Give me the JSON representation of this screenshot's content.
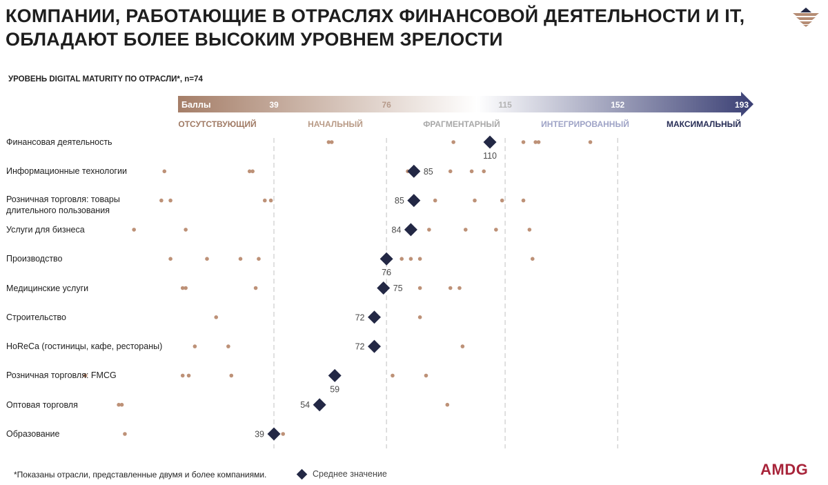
{
  "header": {
    "title_line1": "КОМПАНИИ, РАБОТАЮЩИЕ В ОТРАСЛЯХ ФИНАНСОВОЙ ДЕЯТЕЛЬНОСТИ И IT,",
    "title_line2": "ОБЛАДАЮТ БОЛЕЕ ВЫСОКИМ УРОВНЕМ ЗРЕЛОСТИ",
    "logo_icon": "triangle-stripes-logo-icon"
  },
  "footer": {
    "footnote": "*Показаны отрасли, представленные двумя и более компаниями.",
    "legend_label": "Среднее значение",
    "brand": "AMDG"
  },
  "colors": {
    "dot": "#bd9177",
    "mean": "#232845",
    "level_0": "#a07a64",
    "level_1": "#b89a86",
    "level_2": "#a8a8a8",
    "level_3": "#9ea3c6",
    "level_4": "#262c55",
    "gradient_start": "#a57e68",
    "gradient_mid": "#ffffff",
    "gradient_end": "#3a3f74",
    "brand": "#a8243a"
  },
  "chart_data": {
    "type": "scatter",
    "title": "УРОВЕНЬ DIGITAL MATURITY ПО ОТРАСЛИ*, n=74",
    "xlabel": "Баллы",
    "xlim": [
      0,
      193
    ],
    "thresholds": [
      39,
      76,
      115,
      152,
      193
    ],
    "levels": [
      "ОТСУТСТВУЮЩИЙ",
      "НАЧАЛЬНЫЙ",
      "ФРАГМЕНТАРНЫЙ",
      "ИНТЕГРИРОВАННЫЙ",
      "МАКСИМАЛЬНЫЙ"
    ],
    "grid": "dashed vertical lines at thresholds",
    "categories": [
      {
        "name": "Финансовая деятельность",
        "mean": 110,
        "mean_label": "110",
        "label_pos": "below",
        "points": [
          57,
          58,
          98,
          121,
          125,
          126,
          143
        ]
      },
      {
        "name": "Информационные технологии",
        "mean": 85,
        "mean_label": "85",
        "label_pos": "right",
        "points": [
          3,
          31,
          32,
          83,
          97,
          104,
          108
        ]
      },
      {
        "name": "Розничная торговля: товары длительного пользования",
        "mean": 85,
        "mean_label": "85",
        "label_pos": "left",
        "points": [
          2,
          5,
          36,
          38,
          92,
          105,
          114,
          121
        ]
      },
      {
        "name": "Услуги для бизнеса",
        "mean": 84,
        "mean_label": "84",
        "label_pos": "left",
        "points": [
          -7,
          10,
          90,
          102,
          112,
          123
        ]
      },
      {
        "name": "Производство",
        "mean": 76,
        "mean_label": "76",
        "label_pos": "below",
        "points": [
          5,
          17,
          28,
          34,
          81,
          84,
          87,
          124
        ]
      },
      {
        "name": "Медицинские услуги",
        "mean": 75,
        "mean_label": "75",
        "label_pos": "right",
        "points": [
          9,
          10,
          33,
          87,
          97,
          100
        ]
      },
      {
        "name": "Строительство",
        "mean": 72,
        "mean_label": "72",
        "label_pos": "left",
        "points": [
          20,
          87
        ]
      },
      {
        "name": "HoReCa (гостиницы, кафе, рестораны)",
        "mean": 72,
        "mean_label": "72",
        "label_pos": "left",
        "points": [
          13,
          24,
          101
        ]
      },
      {
        "name": "Розничная торговля: FMCG",
        "mean": 59,
        "mean_label": "59",
        "label_pos": "below",
        "points": [
          -23,
          9,
          11,
          25,
          78,
          89
        ]
      },
      {
        "name": "Оптовая торговля",
        "mean": 54,
        "mean_label": "54",
        "label_pos": "left",
        "points": [
          -12,
          -11,
          96
        ]
      },
      {
        "name": "Образование",
        "mean": 39,
        "mean_label": "39",
        "label_pos": "left",
        "points": [
          -10,
          40,
          42
        ]
      }
    ]
  }
}
